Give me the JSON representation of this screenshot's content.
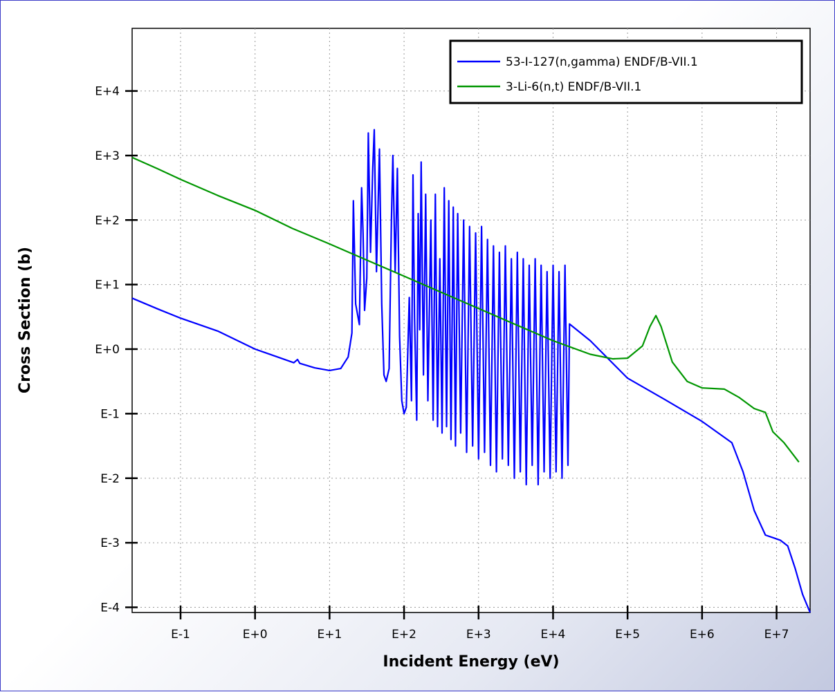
{
  "chart_data": {
    "type": "line",
    "title": "",
    "xlabel": "Incident Energy (eV)",
    "ylabel": "Cross Section (b)",
    "xscale": "log",
    "yscale": "log",
    "xlim_log10": [
      -1.65,
      7.45
    ],
    "ylim_log10": [
      -4.08,
      4.97
    ],
    "x_ticks": [
      {
        "exp": -1,
        "label": "E-1"
      },
      {
        "exp": 0,
        "label": "E+0"
      },
      {
        "exp": 1,
        "label": "E+1"
      },
      {
        "exp": 2,
        "label": "E+2"
      },
      {
        "exp": 3,
        "label": "E+3"
      },
      {
        "exp": 4,
        "label": "E+4"
      },
      {
        "exp": 5,
        "label": "E+5"
      },
      {
        "exp": 6,
        "label": "E+6"
      },
      {
        "exp": 7,
        "label": "E+7"
      }
    ],
    "y_ticks": [
      {
        "exp": -4,
        "label": "E-4"
      },
      {
        "exp": -3,
        "label": "E-3"
      },
      {
        "exp": -2,
        "label": "E-2"
      },
      {
        "exp": -1,
        "label": "E-1"
      },
      {
        "exp": 0,
        "label": "E+0"
      },
      {
        "exp": 1,
        "label": "E+1"
      },
      {
        "exp": 2,
        "label": "E+2"
      },
      {
        "exp": 3,
        "label": "E+3"
      },
      {
        "exp": 4,
        "label": "E+4"
      }
    ],
    "grid": true,
    "legend_position": "top-right",
    "series": [
      {
        "name": "53-I-127(n,gamma) ENDF/B-VII.1",
        "color": "#0000ff",
        "log10_points": [
          [
            -1.65,
            0.79
          ],
          [
            -1.3,
            0.62
          ],
          [
            -1.0,
            0.48
          ],
          [
            -0.5,
            0.28
          ],
          [
            0.0,
            0.0
          ],
          [
            0.3,
            -0.12
          ],
          [
            0.52,
            -0.21
          ],
          [
            0.57,
            -0.16
          ],
          [
            0.6,
            -0.22
          ],
          [
            0.8,
            -0.29
          ],
          [
            1.0,
            -0.33
          ],
          [
            1.15,
            -0.3
          ],
          [
            1.25,
            -0.12
          ],
          [
            1.3,
            0.25
          ],
          [
            1.32,
            2.3
          ],
          [
            1.35,
            0.7
          ],
          [
            1.4,
            0.38
          ],
          [
            1.43,
            2.5
          ],
          [
            1.45,
            1.8
          ],
          [
            1.47,
            0.6
          ],
          [
            1.5,
            1.1
          ],
          [
            1.52,
            3.35
          ],
          [
            1.55,
            1.5
          ],
          [
            1.58,
            2.8
          ],
          [
            1.6,
            3.4
          ],
          [
            1.63,
            1.2
          ],
          [
            1.67,
            3.1
          ],
          [
            1.7,
            0.7
          ],
          [
            1.73,
            -0.4
          ],
          [
            1.76,
            -0.5
          ],
          [
            1.8,
            -0.3
          ],
          [
            1.83,
            2.0
          ],
          [
            1.85,
            3.0
          ],
          [
            1.88,
            1.2
          ],
          [
            1.91,
            2.8
          ],
          [
            1.94,
            0.2
          ],
          [
            1.97,
            -0.8
          ],
          [
            2.0,
            -1.0
          ],
          [
            2.03,
            -0.9
          ],
          [
            2.07,
            0.8
          ],
          [
            2.1,
            -0.8
          ],
          [
            2.12,
            2.7
          ],
          [
            2.14,
            0.5
          ],
          [
            2.17,
            -1.1
          ],
          [
            2.19,
            2.1
          ],
          [
            2.21,
            0.3
          ],
          [
            2.23,
            2.9
          ],
          [
            2.26,
            -0.4
          ],
          [
            2.29,
            2.4
          ],
          [
            2.32,
            -0.8
          ],
          [
            2.36,
            2.0
          ],
          [
            2.39,
            -1.1
          ],
          [
            2.42,
            2.4
          ],
          [
            2.45,
            -1.2
          ],
          [
            2.48,
            1.4
          ],
          [
            2.51,
            -1.3
          ],
          [
            2.54,
            2.5
          ],
          [
            2.57,
            -1.2
          ],
          [
            2.6,
            2.3
          ],
          [
            2.63,
            -1.4
          ],
          [
            2.66,
            2.2
          ],
          [
            2.69,
            -1.5
          ],
          [
            2.72,
            2.1
          ],
          [
            2.76,
            -1.3
          ],
          [
            2.8,
            2.0
          ],
          [
            2.84,
            -1.6
          ],
          [
            2.88,
            1.9
          ],
          [
            2.92,
            -1.5
          ],
          [
            2.96,
            1.8
          ],
          [
            3.0,
            -1.7
          ],
          [
            3.04,
            1.9
          ],
          [
            3.08,
            -1.6
          ],
          [
            3.12,
            1.7
          ],
          [
            3.16,
            -1.8
          ],
          [
            3.2,
            1.6
          ],
          [
            3.24,
            -1.9
          ],
          [
            3.28,
            1.5
          ],
          [
            3.32,
            -1.7
          ],
          [
            3.36,
            1.6
          ],
          [
            3.4,
            -1.8
          ],
          [
            3.44,
            1.4
          ],
          [
            3.48,
            -2.0
          ],
          [
            3.52,
            1.5
          ],
          [
            3.56,
            -1.9
          ],
          [
            3.6,
            1.4
          ],
          [
            3.64,
            -2.1
          ],
          [
            3.68,
            1.3
          ],
          [
            3.72,
            -1.8
          ],
          [
            3.76,
            1.4
          ],
          [
            3.8,
            -2.1
          ],
          [
            3.84,
            1.3
          ],
          [
            3.88,
            -1.9
          ],
          [
            3.92,
            1.2
          ],
          [
            3.96,
            -2.0
          ],
          [
            4.0,
            1.3
          ],
          [
            4.04,
            -1.9
          ],
          [
            4.08,
            1.2
          ],
          [
            4.12,
            -2.0
          ],
          [
            4.16,
            1.3
          ],
          [
            4.2,
            -1.8
          ],
          [
            4.22,
            0.39
          ],
          [
            4.5,
            0.13
          ],
          [
            5.0,
            -0.45
          ],
          [
            5.5,
            -0.78
          ],
          [
            6.0,
            -1.12
          ],
          [
            6.4,
            -1.45
          ],
          [
            6.55,
            -1.9
          ],
          [
            6.7,
            -2.5
          ],
          [
            6.85,
            -2.88
          ],
          [
            6.95,
            -2.92
          ],
          [
            7.05,
            -2.96
          ],
          [
            7.15,
            -3.05
          ],
          [
            7.25,
            -3.4
          ],
          [
            7.35,
            -3.8
          ],
          [
            7.45,
            -4.08
          ]
        ]
      },
      {
        "name": "3-Li-6(n,t) ENDF/B-VII.1",
        "color": "#009600",
        "log10_points": [
          [
            -1.65,
            2.97
          ],
          [
            -1.3,
            2.79
          ],
          [
            -1.0,
            2.63
          ],
          [
            -0.5,
            2.38
          ],
          [
            0.0,
            2.15
          ],
          [
            0.5,
            1.87
          ],
          [
            1.0,
            1.63
          ],
          [
            1.5,
            1.38
          ],
          [
            2.0,
            1.13
          ],
          [
            2.5,
            0.88
          ],
          [
            3.0,
            0.63
          ],
          [
            3.5,
            0.38
          ],
          [
            4.0,
            0.13
          ],
          [
            4.5,
            -0.08
          ],
          [
            4.8,
            -0.15
          ],
          [
            5.0,
            -0.14
          ],
          [
            5.2,
            0.05
          ],
          [
            5.3,
            0.35
          ],
          [
            5.38,
            0.52
          ],
          [
            5.45,
            0.35
          ],
          [
            5.6,
            -0.2
          ],
          [
            5.8,
            -0.5
          ],
          [
            6.0,
            -0.6
          ],
          [
            6.3,
            -0.62
          ],
          [
            6.5,
            -0.75
          ],
          [
            6.7,
            -0.92
          ],
          [
            6.85,
            -0.98
          ],
          [
            6.95,
            -1.28
          ],
          [
            7.1,
            -1.45
          ],
          [
            7.3,
            -1.75
          ]
        ]
      }
    ]
  }
}
